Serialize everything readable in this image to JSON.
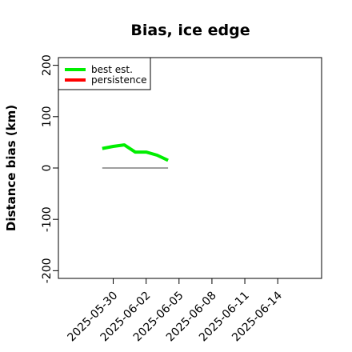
{
  "chart_data": {
    "type": "line",
    "title": "Bias, ice edge",
    "xlabel": "",
    "ylabel": "Distance bias (km)",
    "ylim": [
      -215,
      215
    ],
    "xlim": [
      "2025-05-25",
      "2025-06-18"
    ],
    "grid": false,
    "legend_position": "top-left",
    "x_ticks": [
      "2025-05-30",
      "2025-06-02",
      "2025-06-05",
      "2025-06-08",
      "2025-06-11",
      "2025-06-14"
    ],
    "y_ticks": [
      -200,
      -100,
      0,
      100,
      200
    ],
    "reference_line": {
      "y": 0,
      "x_from": "2025-05-29",
      "x_to": "2025-06-04",
      "color": "#666666"
    },
    "series": [
      {
        "name": "best est.",
        "color": "#00ee00",
        "points": [
          {
            "x": "2025-05-29",
            "y": 38
          },
          {
            "x": "2025-05-30",
            "y": 42
          },
          {
            "x": "2025-05-31",
            "y": 45
          },
          {
            "x": "2025-06-01",
            "y": 31
          },
          {
            "x": "2025-06-02",
            "y": 31
          },
          {
            "x": "2025-06-03",
            "y": 25
          },
          {
            "x": "2025-06-04",
            "y": 15
          }
        ]
      },
      {
        "name": "persistence",
        "color": "#ff0000",
        "points": []
      }
    ]
  }
}
